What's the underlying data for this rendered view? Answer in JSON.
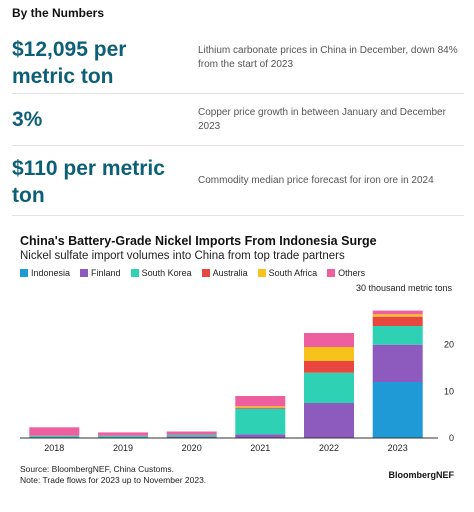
{
  "header": {
    "title": "By the Numbers"
  },
  "stats": [
    {
      "value": "$12,095 per metric ton",
      "description": "Lithium carbonate prices in China in December, down 84% from the start of 2023"
    },
    {
      "value": "3%",
      "description": "Copper price growth in between January and December 2023"
    },
    {
      "value": "$110 per metric ton",
      "description": "Commodity median price forecast for iron ore in 2024"
    }
  ],
  "chart_data": {
    "type": "bar",
    "stacked": true,
    "title": "China's Battery-Grade Nickel Imports From Indonesia Surge",
    "subtitle": "Nickel sulfate import volumes into China from top trade partners",
    "unit_label": "30 thousand metric tons",
    "categories": [
      "2018",
      "2019",
      "2020",
      "2021",
      "2022",
      "2023"
    ],
    "series": [
      {
        "name": "Indonesia",
        "color": "#1f9ad6",
        "values": [
          0,
          0,
          0,
          0,
          0,
          12
        ]
      },
      {
        "name": "Finland",
        "color": "#8c5bbd",
        "values": [
          0.2,
          0.2,
          0.3,
          0.8,
          7.5,
          8
        ]
      },
      {
        "name": "South Korea",
        "color": "#2ed1b3",
        "values": [
          0.3,
          0.3,
          0.4,
          5.5,
          6.5,
          4
        ]
      },
      {
        "name": "Australia",
        "color": "#e8473f",
        "values": [
          0,
          0,
          0,
          0.2,
          2.5,
          2
        ]
      },
      {
        "name": "South Africa",
        "color": "#f7c21b",
        "values": [
          0,
          0,
          0,
          0.3,
          3,
          0.5
        ]
      },
      {
        "name": "Others",
        "color": "#ee5fa0",
        "values": [
          1.8,
          0.7,
          0.7,
          2.2,
          3,
          0.8
        ]
      }
    ],
    "ylim": [
      0,
      30
    ],
    "yticks": [
      0,
      10,
      20
    ],
    "grid": false,
    "legend_position": "top-left"
  },
  "footer": {
    "source_line1": "Source: BloombergNEF, China Customs.",
    "source_line2": "Note: Trade flows for 2023 up to November 2023.",
    "brand": "BloombergNEF"
  }
}
